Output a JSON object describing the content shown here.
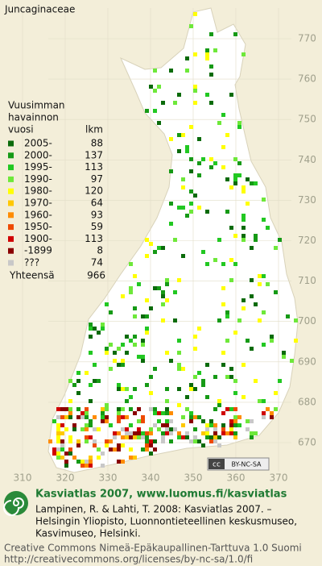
{
  "title": "Juncaginaceae",
  "legend": {
    "header": [
      "Vuusimman",
      "havainnon",
      "vuosi"
    ],
    "count_header": "lkm",
    "items": [
      {
        "label": "2005-",
        "count": 88,
        "color": "#0b6b0b"
      },
      {
        "label": "2000-",
        "count": 137,
        "color": "#169a16"
      },
      {
        "label": "1995-",
        "count": 113,
        "color": "#22c822"
      },
      {
        "label": "1990-",
        "count": 97,
        "color": "#6ee83a"
      },
      {
        "label": "1980-",
        "count": 120,
        "color": "#ffff00"
      },
      {
        "label": "1970-",
        "count": 64,
        "color": "#ffc800"
      },
      {
        "label": "1960-",
        "count": 93,
        "color": "#ff8c00"
      },
      {
        "label": "1950-",
        "count": 59,
        "color": "#ee4a00"
      },
      {
        "label": "1900-",
        "count": 113,
        "color": "#d00000"
      },
      {
        "label": "-1899",
        "count": 8,
        "color": "#8a0000"
      },
      {
        "label": "???",
        "count": 74,
        "color": "#c8c8c8"
      }
    ],
    "total_label": "Yhteensä",
    "total": 966
  },
  "grid": {
    "north": [
      770,
      760,
      750,
      740,
      730,
      720,
      710,
      700,
      690,
      680,
      670
    ],
    "east": [
      310,
      320,
      330,
      340,
      350,
      360,
      370
    ]
  },
  "badge": {
    "symbol": "cc",
    "text": "BY-NC-SA"
  },
  "footer": {
    "site": "Kasviatlas 2007, www.luomus.fi/kasviatlas",
    "citation": [
      "Lampinen, R. & Lahti, T. 2008: Kasviatlas 2007. –",
      "Helsingin Yliopisto, Luonnontieteellinen keskusmuseo,",
      "Kasvimuseo, Helsinki."
    ],
    "license": [
      "Creative Commons Nimeä-Epäkaupallinen-Tarttuva 1.0 Suomi",
      "http://creativecommons.org/licenses/by-nc-sa/1.0/fi"
    ]
  }
}
